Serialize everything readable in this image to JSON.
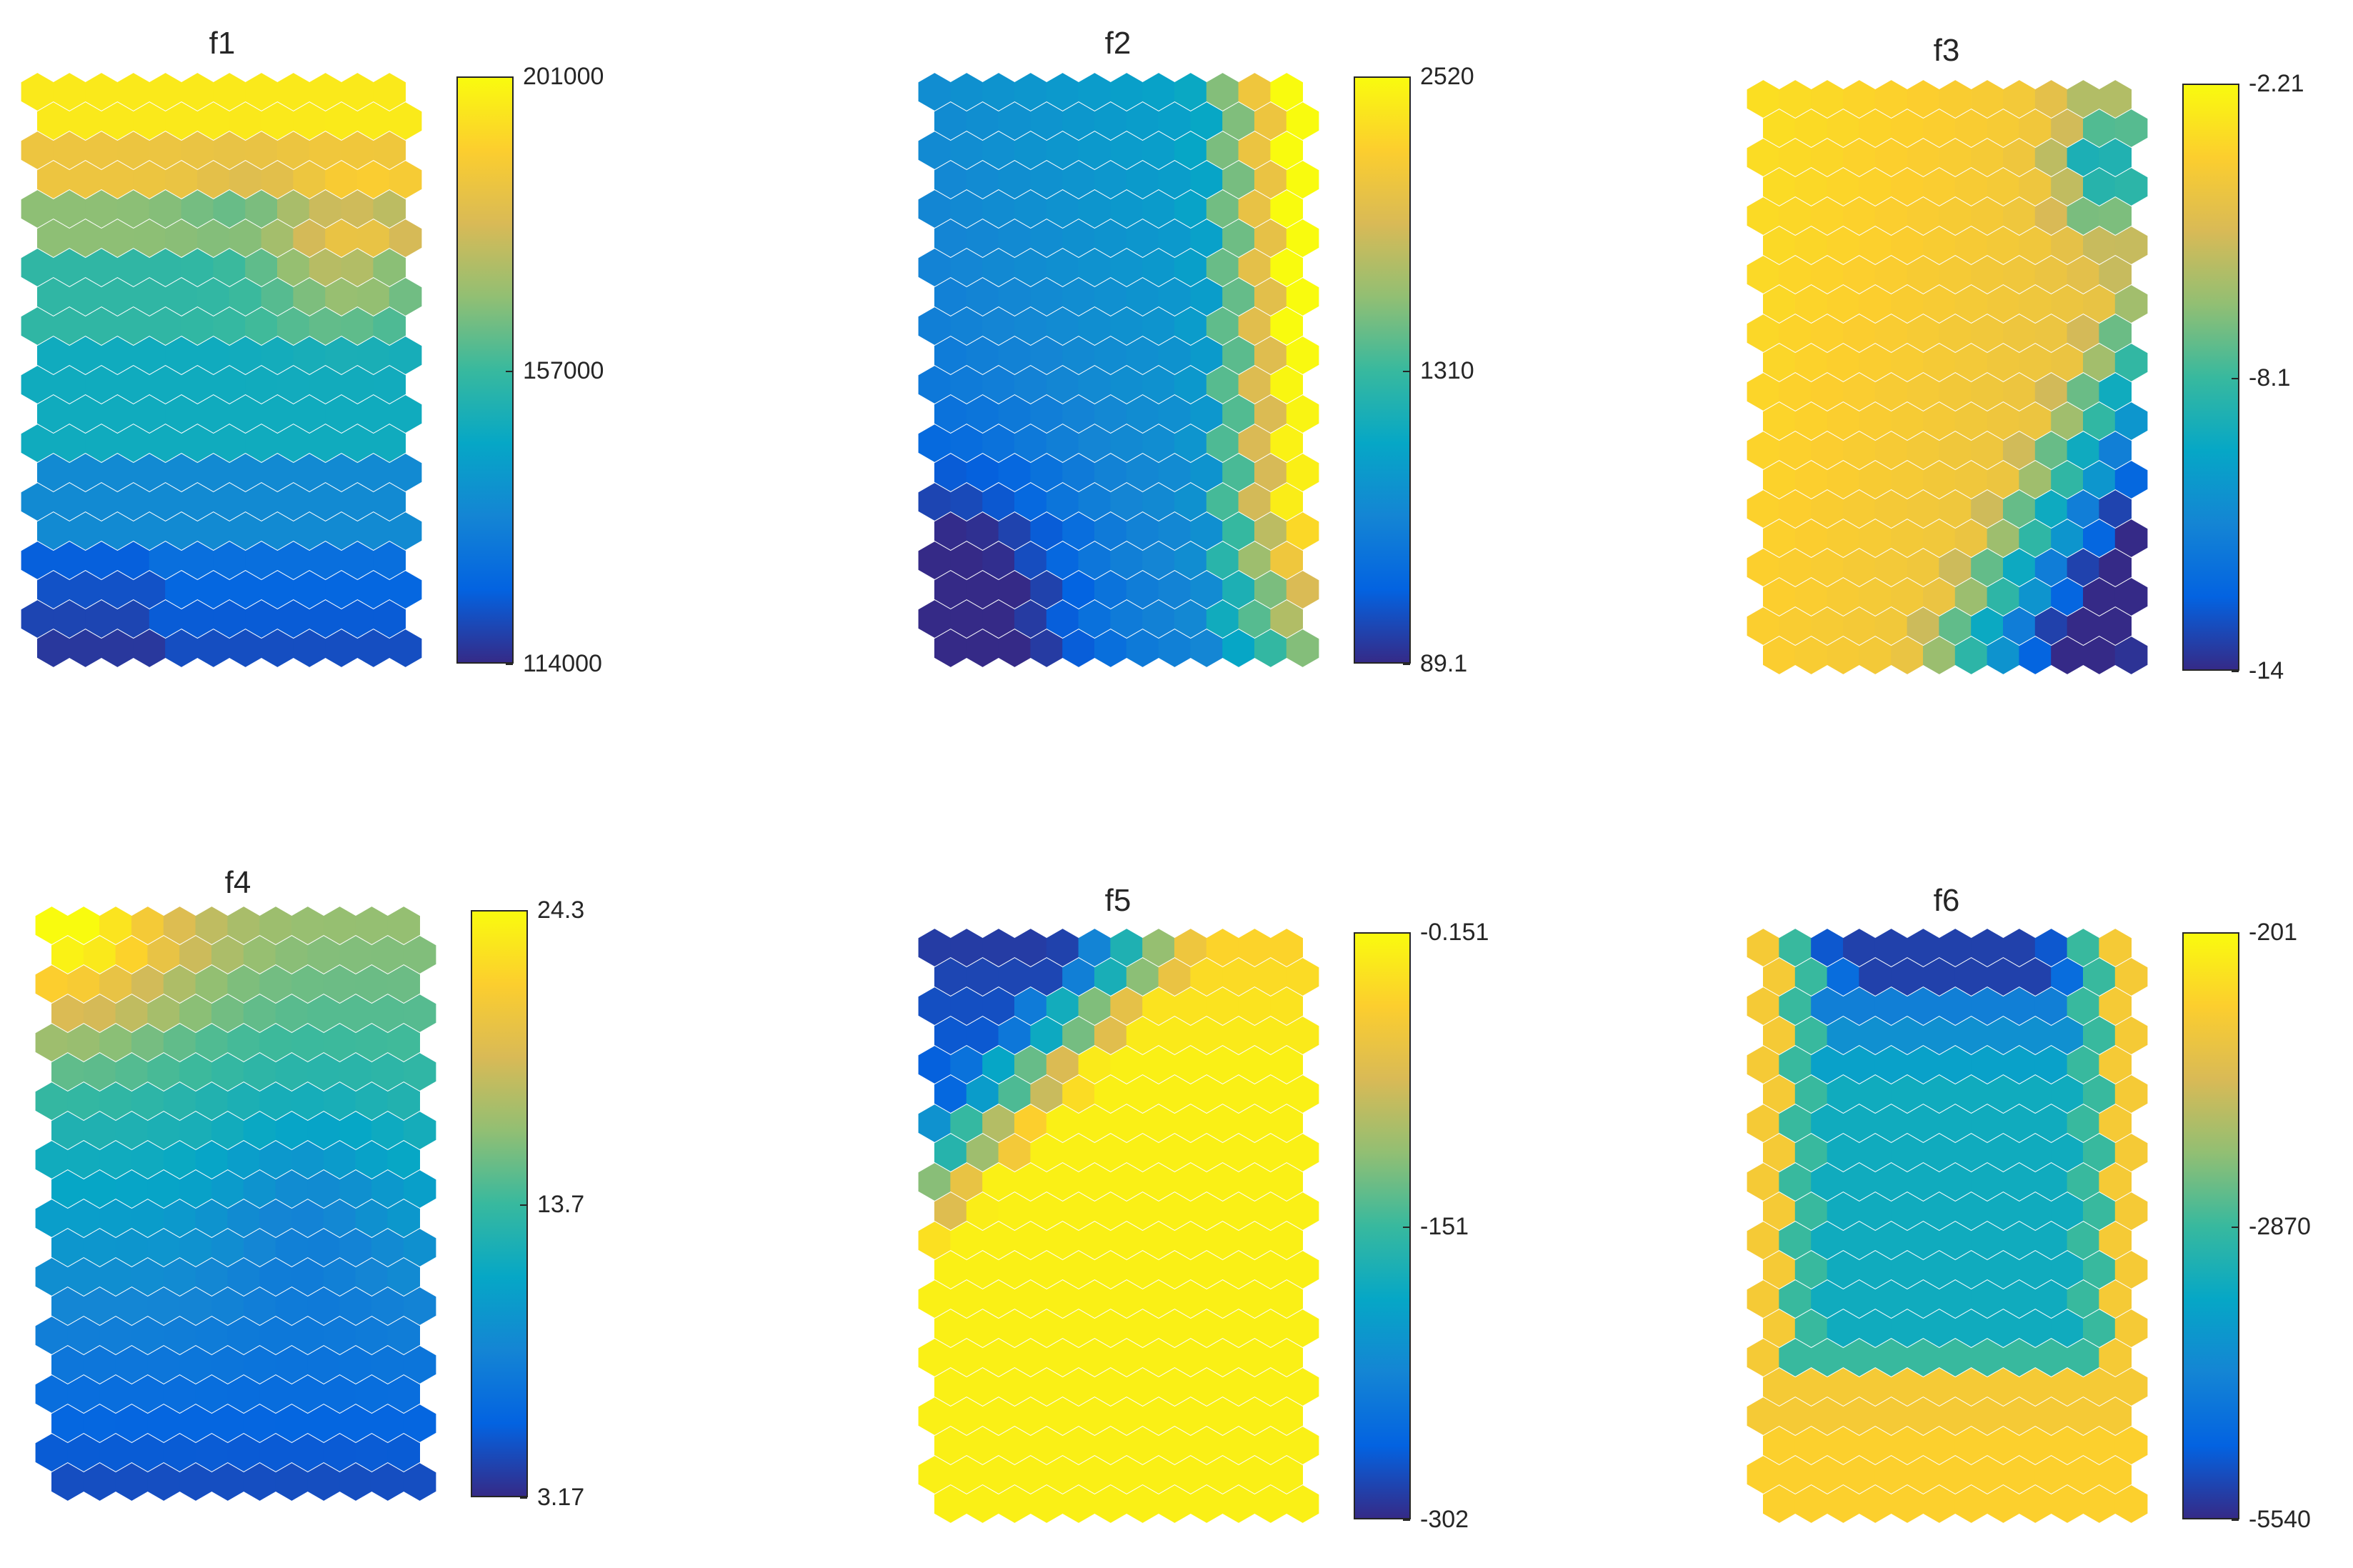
{
  "figure": {
    "panel_count": 6,
    "layout": "2 rows x 3 columns",
    "colormap": "parula",
    "colormap_stops": [
      "#352a87",
      "#0363e1",
      "#1485d4",
      "#06a7c6",
      "#38b99e",
      "#92bf73",
      "#d9ba56",
      "#fcce2e",
      "#f9fb0e"
    ],
    "cell_shape": "hexagon",
    "grid": {
      "columns": 12,
      "rows": 20
    }
  },
  "chart_data": [
    {
      "type": "heatmap",
      "title": "f1",
      "colorbar": {
        "min": 114000,
        "max": 201000,
        "ticks": [
          "201000",
          "157000",
          "114000"
        ]
      },
      "pattern": [
        [
          0.0,
          0.95
        ],
        [
          0.08,
          0.82
        ],
        [
          0.17,
          0.62
        ],
        [
          0.28,
          0.5
        ],
        [
          0.45,
          0.42
        ],
        [
          0.65,
          0.3
        ],
        [
          0.82,
          0.2
        ],
        [
          1.0,
          0.05
        ]
      ],
      "notes": "yellow/orange top, green/teal band with an orange patch at upper right, blue lower half, dark purple bottom rows"
    },
    {
      "type": "heatmap",
      "title": "f2",
      "colorbar": {
        "min": 89.1,
        "max": 2520,
        "ticks": [
          "2520",
          "1310",
          "89.1"
        ]
      },
      "notes": "mostly blue field, dark purple lower-left corner, yellow/orange/green stripe along right edge"
    },
    {
      "type": "heatmap",
      "title": "f3",
      "colorbar": {
        "min": -14,
        "max": -2.21,
        "ticks": [
          "-2.21",
          "-8.1",
          "-14"
        ]
      },
      "notes": "yellow/orange field, green patch at upper right, green-to-blue wedge at lower right, dark cell at bottom-right corner"
    },
    {
      "type": "heatmap",
      "title": "f4",
      "colorbar": {
        "min": 3.17,
        "max": 24.3,
        "ticks": [
          "24.3",
          "13.7",
          "3.17"
        ]
      },
      "notes": "yellow/orange top-left corner, green/teal upper band, blue center, dark purple bottom rows"
    },
    {
      "type": "heatmap",
      "title": "f5",
      "colorbar": {
        "min": -302,
        "max": -0.151,
        "ticks": [
          "-0.151",
          "-151",
          "-302"
        ]
      },
      "notes": "blue/teal/green region in upper-left, orange transition, bright yellow over most of the map"
    },
    {
      "type": "heatmap",
      "title": "f6",
      "colorbar": {
        "min": -5540,
        "max": -201,
        "ticks": [
          "-201",
          "-2870",
          "-5540"
        ]
      },
      "notes": "U-shaped pattern: dark blue at top center, teal interior, green ring, orange/yellow outer border and bottom"
    }
  ]
}
